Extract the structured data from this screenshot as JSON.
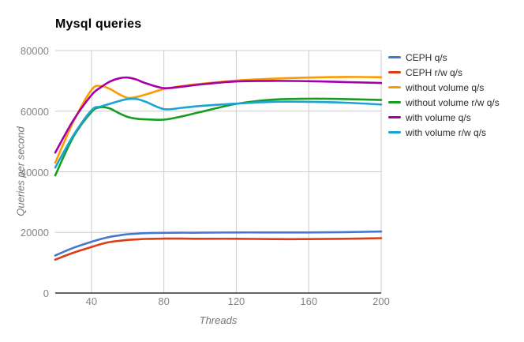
{
  "chart_data": {
    "type": "line",
    "title": "Mysql queries",
    "xlabel": "Threads",
    "ylabel": "Queries per second",
    "xlim": [
      20,
      200
    ],
    "ylim": [
      0,
      80000
    ],
    "x_ticks": [
      40,
      80,
      120,
      160,
      200
    ],
    "y_ticks": [
      0,
      20000,
      40000,
      60000,
      80000
    ],
    "grid": true,
    "curve": "smooth",
    "legend_position": "right",
    "grid_color": "#cccccc",
    "baseline_color": "#333333",
    "x": [
      20,
      30,
      40,
      45,
      50,
      55,
      60,
      65,
      70,
      80,
      90,
      100,
      120,
      140,
      160,
      180,
      200
    ],
    "series": [
      {
        "name": "CEPH q/s",
        "color": "#4477d4",
        "values": [
          12400,
          14900,
          16900,
          17800,
          18500,
          19000,
          19400,
          19600,
          19750,
          19850,
          19900,
          19900,
          20000,
          20000,
          20000,
          20100,
          20300
        ]
      },
      {
        "name": "CEPH r/w q/s",
        "color": "#dc3d13",
        "values": [
          11000,
          13300,
          15200,
          16100,
          16800,
          17200,
          17500,
          17700,
          17850,
          17950,
          17950,
          17900,
          17900,
          17800,
          17800,
          17900,
          18100
        ]
      },
      {
        "name": "without volume q/s",
        "color": "#ff9900",
        "values": [
          43000,
          56500,
          67000,
          68300,
          67400,
          65700,
          64400,
          64700,
          65500,
          67300,
          68300,
          69000,
          70100,
          70700,
          71100,
          71300,
          71200
        ]
      },
      {
        "name": "without volume r/w q/s",
        "color": "#169e22",
        "values": [
          38800,
          51500,
          59700,
          61300,
          60900,
          59400,
          58100,
          57500,
          57300,
          57200,
          58300,
          59700,
          62400,
          63800,
          64100,
          64000,
          63700
        ]
      },
      {
        "name": "with volume q/s",
        "color": "#a400a8",
        "values": [
          46300,
          57000,
          65300,
          67800,
          69700,
          70800,
          71100,
          70400,
          69200,
          67600,
          68100,
          68800,
          69800,
          70000,
          69900,
          69600,
          69300
        ]
      },
      {
        "name": "with volume r/w q/s",
        "color": "#1ba3d6",
        "values": [
          41400,
          52000,
          60300,
          61500,
          62400,
          63300,
          64000,
          64000,
          63100,
          60700,
          61100,
          61700,
          62500,
          63100,
          63100,
          62800,
          62200
        ]
      }
    ]
  }
}
